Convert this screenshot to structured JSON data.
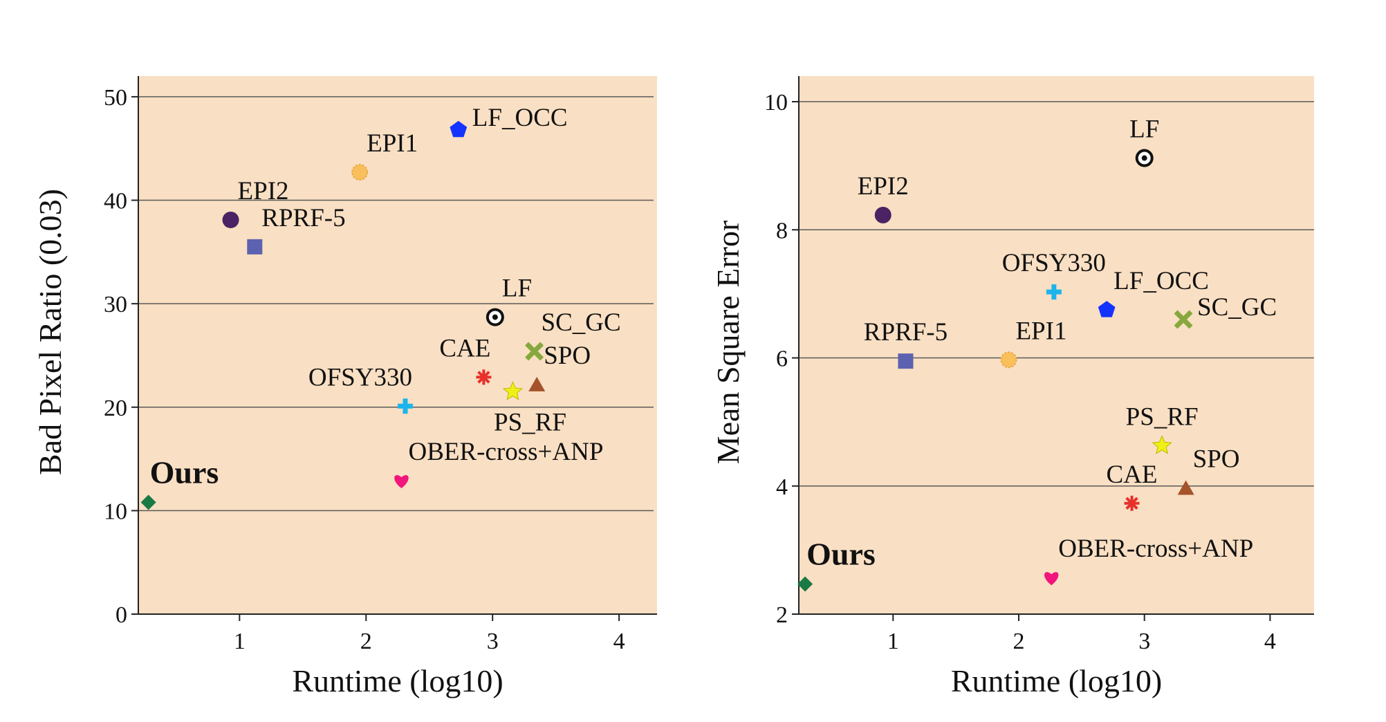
{
  "figure_colors": {
    "plot_background": "#f9dfc3",
    "gridline": "#5a5a5a",
    "axis": "#222222"
  },
  "chart_data": [
    {
      "type": "scatter",
      "id": "left",
      "title": "",
      "xlabel": "Runtime (log10)",
      "ylabel": "Bad Pixel Ratio (0.03)",
      "xlim": [
        0.2,
        4.3
      ],
      "ylim": [
        0,
        52
      ],
      "xticks": [
        1,
        2,
        3,
        4
      ],
      "yticks": [
        0,
        10,
        20,
        30,
        40,
        50
      ],
      "grid": "horizontal",
      "legend": "none",
      "points": [
        {
          "label": "LF_OCC",
          "x": 2.73,
          "y": 46.8,
          "marker": "pentagon",
          "color": "#1433ff",
          "label_pos": "right"
        },
        {
          "label": "EPI1",
          "x": 1.95,
          "y": 42.7,
          "marker": "sun",
          "color": "#f9bf5b",
          "label_pos": "above-right"
        },
        {
          "label": "EPI2",
          "x": 0.93,
          "y": 38.1,
          "marker": "circle",
          "color": "#4b2263",
          "label_pos": "above-right"
        },
        {
          "label": "RPRF-5",
          "x": 1.12,
          "y": 35.5,
          "marker": "square",
          "color": "#5c62b0",
          "label_pos": "above-right"
        },
        {
          "label": "LF",
          "x": 3.02,
          "y": 28.7,
          "marker": "bullseye",
          "color": "#111111",
          "label_pos": "above-right"
        },
        {
          "label": "SC_GC",
          "x": 3.33,
          "y": 25.4,
          "marker": "x",
          "color": "#86a83c",
          "label_pos": "above-right"
        },
        {
          "label": "CAE",
          "x": 2.93,
          "y": 22.9,
          "marker": "asterisk",
          "color": "#e8302a",
          "label_pos": "above-left"
        },
        {
          "label": "SPO",
          "x": 3.35,
          "y": 22.2,
          "marker": "triangle",
          "color": "#a4532a",
          "label_pos": "above-right"
        },
        {
          "label": "PS_RF",
          "x": 3.16,
          "y": 21.5,
          "marker": "star",
          "color": "#f0f016",
          "label_pos": "below"
        },
        {
          "label": "OFSY330",
          "x": 2.31,
          "y": 20.1,
          "marker": "plus",
          "color": "#1db4ec",
          "label_pos": "above-left"
        },
        {
          "label": "OBER-cross+ANP",
          "x": 2.28,
          "y": 12.9,
          "marker": "heart",
          "color": "#f0167c",
          "label_pos": "above-right"
        },
        {
          "label": "Ours",
          "x": 0.28,
          "y": 10.8,
          "marker": "diamond",
          "color": "#1a7a45",
          "label_pos": "above-right-bold"
        }
      ]
    },
    {
      "type": "scatter",
      "id": "right",
      "title": "",
      "xlabel": "Runtime (log10)",
      "ylabel": "Mean Square Error",
      "xlim": [
        0.25,
        4.35
      ],
      "ylim": [
        2,
        10.4
      ],
      "xticks": [
        1,
        2,
        3,
        4
      ],
      "yticks": [
        2,
        4,
        6,
        8,
        10
      ],
      "grid": "horizontal",
      "legend": "none",
      "points": [
        {
          "label": "LF",
          "x": 3.0,
          "y": 9.12,
          "marker": "bullseye",
          "color": "#111111",
          "label_pos": "above"
        },
        {
          "label": "EPI2",
          "x": 0.92,
          "y": 8.23,
          "marker": "circle",
          "color": "#4b2263",
          "label_pos": "above"
        },
        {
          "label": "OFSY330",
          "x": 2.28,
          "y": 7.03,
          "marker": "plus",
          "color": "#1db4ec",
          "label_pos": "above"
        },
        {
          "label": "LF_OCC",
          "x": 2.7,
          "y": 6.75,
          "marker": "pentagon",
          "color": "#1433ff",
          "label_pos": "above-right"
        },
        {
          "label": "SC_GC",
          "x": 3.31,
          "y": 6.6,
          "marker": "x",
          "color": "#86a83c",
          "label_pos": "right"
        },
        {
          "label": "RPRF-5",
          "x": 1.1,
          "y": 5.95,
          "marker": "square",
          "color": "#5c62b0",
          "label_pos": "above"
        },
        {
          "label": "EPI1",
          "x": 1.92,
          "y": 5.97,
          "marker": "sun",
          "color": "#f9bf5b",
          "label_pos": "above-right"
        },
        {
          "label": "PS_RF",
          "x": 3.14,
          "y": 4.63,
          "marker": "star",
          "color": "#f0f016",
          "label_pos": "above"
        },
        {
          "label": "SPO",
          "x": 3.33,
          "y": 3.97,
          "marker": "triangle",
          "color": "#a4532a",
          "label_pos": "above-right"
        },
        {
          "label": "CAE",
          "x": 2.9,
          "y": 3.73,
          "marker": "asterisk",
          "color": "#e8302a",
          "label_pos": "above"
        },
        {
          "label": "OBER-cross+ANP",
          "x": 2.26,
          "y": 2.57,
          "marker": "heart",
          "color": "#f0167c",
          "label_pos": "above-right"
        },
        {
          "label": "Ours",
          "x": 0.3,
          "y": 2.47,
          "marker": "diamond",
          "color": "#1a7a45",
          "label_pos": "above-right-bold"
        }
      ]
    }
  ]
}
